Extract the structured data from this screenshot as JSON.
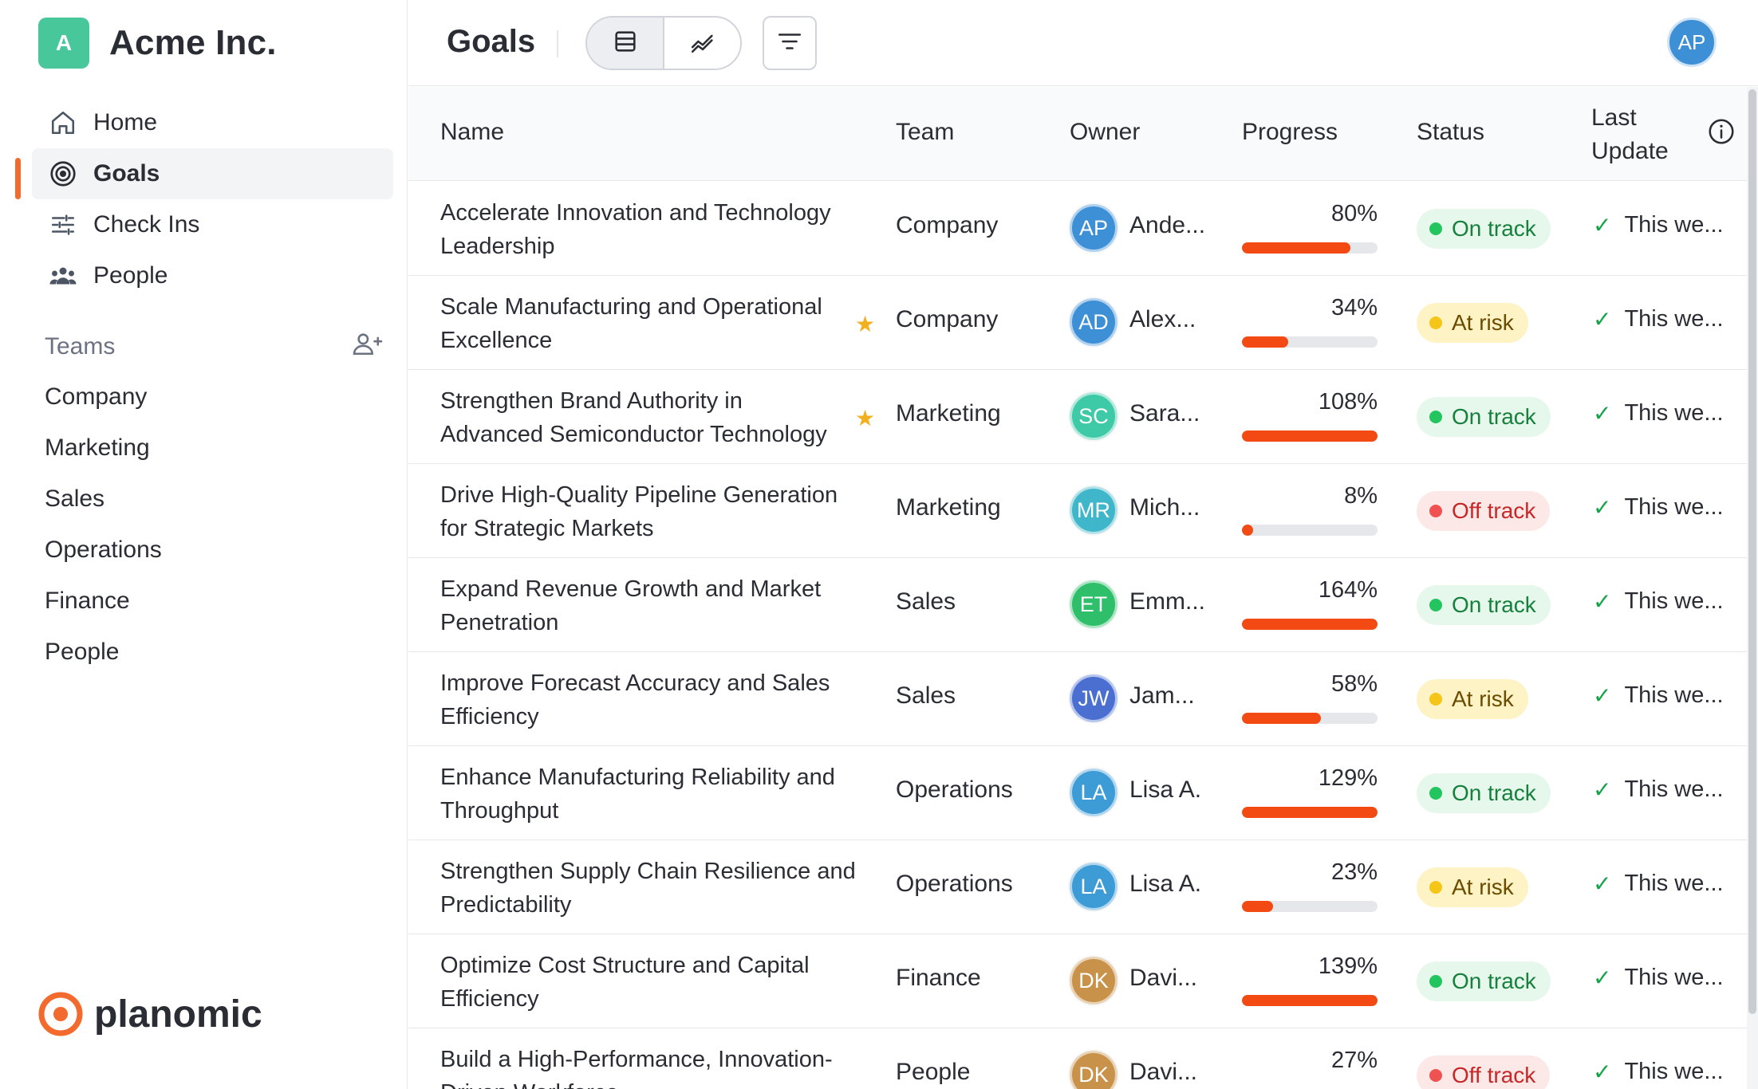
{
  "brand": {
    "initial": "A",
    "name": "Acme Inc."
  },
  "nav": [
    {
      "label": "Home",
      "icon": "home-icon"
    },
    {
      "label": "Goals",
      "icon": "target-icon",
      "active": true
    },
    {
      "label": "Check Ins",
      "icon": "sliders-icon"
    },
    {
      "label": "People",
      "icon": "people-icon"
    }
  ],
  "teams": {
    "header": "Teams",
    "items": [
      "Company",
      "Marketing",
      "Sales",
      "Operations",
      "Finance",
      "People"
    ]
  },
  "footer": {
    "logo_text": "planomic"
  },
  "header": {
    "title": "Goals",
    "user_initials": "AP"
  },
  "table": {
    "columns": {
      "name": "Name",
      "team": "Team",
      "owner": "Owner",
      "progress": "Progress",
      "status": "Status",
      "last_update_1": "Last",
      "last_update_2": "Update"
    },
    "rows": [
      {
        "name_1": "Accelerate Innovation and Technology",
        "name_2": "Leadership",
        "starred": false,
        "team": "Company",
        "initials": "AP",
        "avatar_color": "#3d8fd6",
        "owner": "Ande...",
        "progress_label": "80%",
        "progress": 80,
        "status": "On track",
        "status_kind": "on",
        "update": "This we..."
      },
      {
        "name_1": "Scale Manufacturing and Operational",
        "name_2": "Excellence",
        "starred": true,
        "team": "Company",
        "initials": "AD",
        "avatar_color": "#3d8fd6",
        "owner": "Alex...",
        "progress_label": "34%",
        "progress": 34,
        "status": "At risk",
        "status_kind": "risk",
        "update": "This we..."
      },
      {
        "name_1": "Strengthen Brand Authority in",
        "name_2": "Advanced Semiconductor Technology",
        "starred": true,
        "team": "Marketing",
        "initials": "SC",
        "avatar_color": "#3ec9a7",
        "owner": "Sara...",
        "progress_label": "108%",
        "progress": 108,
        "status": "On track",
        "status_kind": "on",
        "update": "This we..."
      },
      {
        "name_1": "Drive High-Quality Pipeline Generation",
        "name_2": "for Strategic Markets",
        "starred": false,
        "team": "Marketing",
        "initials": "MR",
        "avatar_color": "#3fb6c9",
        "owner": "Mich...",
        "progress_label": "8%",
        "progress": 8,
        "status": "Off track",
        "status_kind": "off",
        "update": "This we..."
      },
      {
        "name_1": "Expand Revenue Growth and Market",
        "name_2": "Penetration",
        "starred": false,
        "team": "Sales",
        "initials": "ET",
        "avatar_color": "#2fbf6a",
        "owner": "Emm...",
        "progress_label": "164%",
        "progress": 164,
        "status": "On track",
        "status_kind": "on",
        "update": "This we..."
      },
      {
        "name_1": "Improve Forecast Accuracy and Sales",
        "name_2": "Efficiency",
        "starred": false,
        "team": "Sales",
        "initials": "JW",
        "avatar_color": "#4a6fd1",
        "owner": "Jam...",
        "progress_label": "58%",
        "progress": 58,
        "status": "At risk",
        "status_kind": "risk",
        "update": "This we..."
      },
      {
        "name_1": "Enhance Manufacturing Reliability and",
        "name_2": "Throughput",
        "starred": false,
        "team": "Operations",
        "initials": "LA",
        "avatar_color": "#3d9bd6",
        "owner": "Lisa A.",
        "progress_label": "129%",
        "progress": 129,
        "status": "On track",
        "status_kind": "on",
        "update": "This we..."
      },
      {
        "name_1": "Strengthen Supply Chain Resilience and",
        "name_2": "Predictability",
        "starred": false,
        "team": "Operations",
        "initials": "LA",
        "avatar_color": "#3d9bd6",
        "owner": "Lisa A.",
        "progress_label": "23%",
        "progress": 23,
        "status": "At risk",
        "status_kind": "risk",
        "update": "This we..."
      },
      {
        "name_1": "Optimize Cost Structure and Capital",
        "name_2": "Efficiency",
        "starred": false,
        "team": "Finance",
        "initials": "DK",
        "avatar_color": "#c9924a",
        "owner": "Davi...",
        "progress_label": "139%",
        "progress": 139,
        "status": "On track",
        "status_kind": "on",
        "update": "This we..."
      },
      {
        "name_1": "Build a High-Performance, Innovation-",
        "name_2": "Driven Workforce",
        "starred": false,
        "team": "People",
        "initials": "DK",
        "avatar_color": "#c9924a",
        "owner": "Davi...",
        "progress_label": "27%",
        "progress": 27,
        "status": "Off track",
        "status_kind": "off",
        "update": "This we..."
      }
    ]
  },
  "colors": {
    "accent": "#f26a2e",
    "progress": "#f24a12",
    "brand_badge": "#48c79b"
  }
}
